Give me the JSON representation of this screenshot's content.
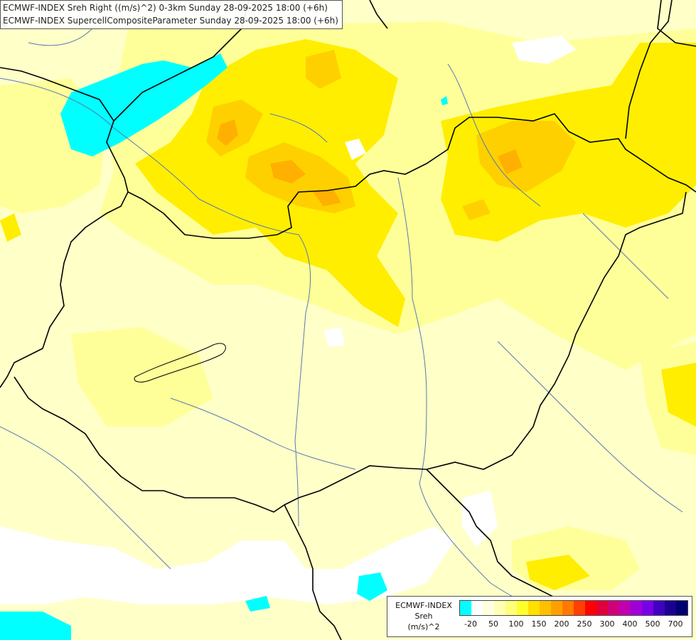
{
  "titles": [
    "ECMWF-INDEX Sreh Right ((m/s)^2) 0-3km Sunday 28-09-2025 18:00 (+6h)",
    "ECMWF-INDEX SupercellCompositeParameter Sunday 28-09-2025 18:00 (+6h)"
  ],
  "legend": {
    "model": "ECMWF-INDEX",
    "variable": "Sreh",
    "unit": "(m/s)^2",
    "ticks": [
      "-20",
      "50",
      "100",
      "150",
      "200",
      "250",
      "300",
      "400",
      "500",
      "700"
    ],
    "colors": [
      "#00ffff",
      "#ffffff",
      "#ffffe0",
      "#ffffb4",
      "#ffff7a",
      "#ffff2c",
      "#ffe000",
      "#ffc000",
      "#ffa000",
      "#ff7a00",
      "#ff4000",
      "#ff0000",
      "#e0003a",
      "#d0007a",
      "#c000b0",
      "#a000d8",
      "#7a00e8",
      "#4000c0",
      "#1a0090",
      "#000070"
    ]
  },
  "colors": {
    "background_field": "#ffffc8",
    "low_field": "#ffff9a",
    "mid_field": "#ffee00",
    "high_field": "#ffd000",
    "peak_field": "#ffb000",
    "negative_field": "#00ffff",
    "border": "#000000",
    "river": "#5a78b4"
  }
}
